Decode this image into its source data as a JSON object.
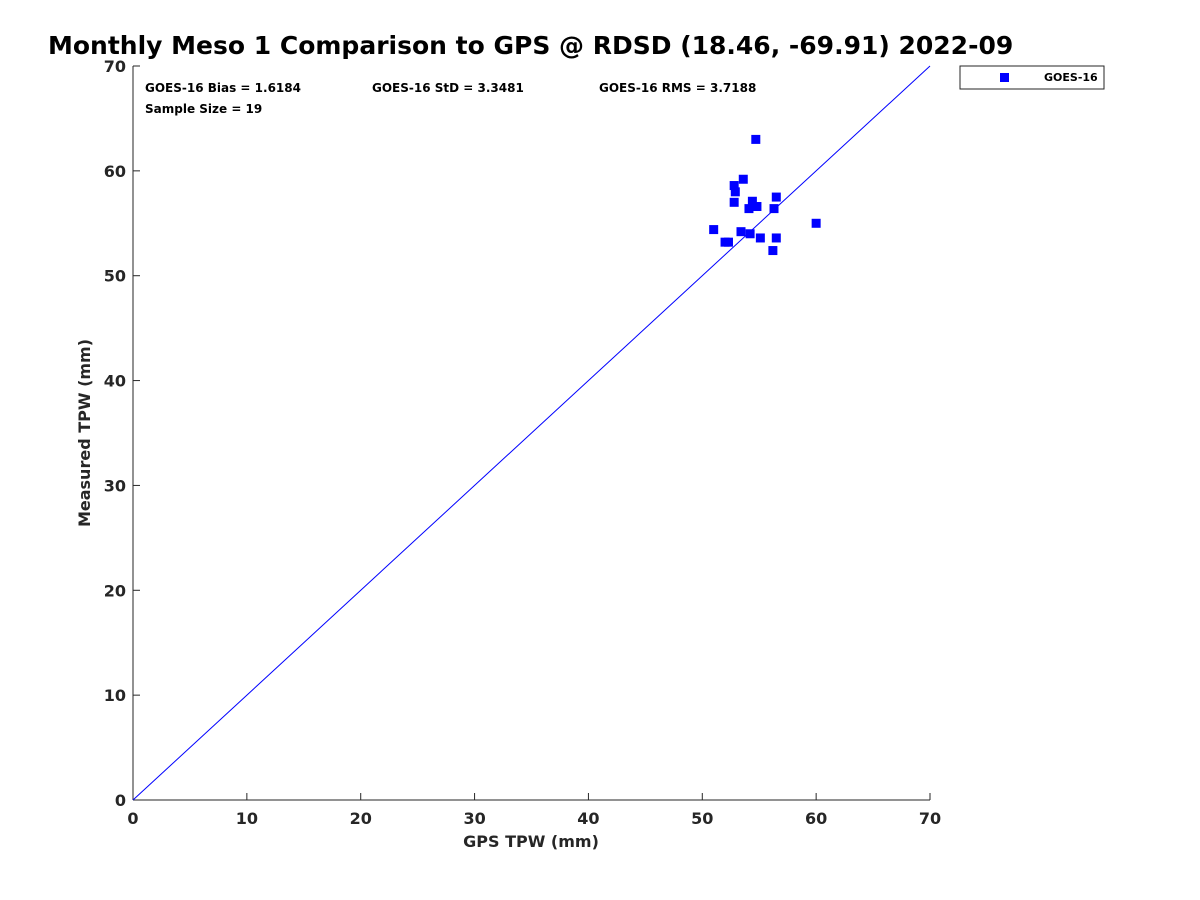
{
  "chart_data": {
    "type": "scatter",
    "title": "Monthly Meso 1 Comparison to GPS @ RDSD (18.46, -69.91) 2022-09",
    "xlabel": "GPS TPW (mm)",
    "ylabel": "Measured TPW (mm)",
    "xlim": [
      0,
      70
    ],
    "ylim": [
      0,
      70
    ],
    "xticks": [
      "0",
      "10",
      "20",
      "30",
      "40",
      "50",
      "60",
      "70"
    ],
    "yticks": [
      "0",
      "10",
      "20",
      "30",
      "40",
      "50",
      "60",
      "70"
    ],
    "grid": false,
    "legend_position": "outside-top-right",
    "reference_line": {
      "x": [
        0,
        70
      ],
      "y": [
        0,
        70
      ],
      "color": "#0000ff"
    },
    "series": [
      {
        "name": "GOES-16",
        "color": "#0000ff",
        "marker": "square",
        "points": [
          {
            "x": 54.7,
            "y": 63.0
          },
          {
            "x": 53.6,
            "y": 59.2
          },
          {
            "x": 52.8,
            "y": 58.6
          },
          {
            "x": 52.9,
            "y": 58.0
          },
          {
            "x": 56.5,
            "y": 57.5
          },
          {
            "x": 52.8,
            "y": 57.0
          },
          {
            "x": 54.4,
            "y": 57.1
          },
          {
            "x": 54.8,
            "y": 56.6
          },
          {
            "x": 54.1,
            "y": 56.4
          },
          {
            "x": 56.3,
            "y": 56.4
          },
          {
            "x": 60.0,
            "y": 55.0
          },
          {
            "x": 51.0,
            "y": 54.4
          },
          {
            "x": 53.4,
            "y": 54.2
          },
          {
            "x": 54.2,
            "y": 54.0
          },
          {
            "x": 55.1,
            "y": 53.6
          },
          {
            "x": 56.5,
            "y": 53.6
          },
          {
            "x": 52.0,
            "y": 53.2
          },
          {
            "x": 52.3,
            "y": 53.2
          },
          {
            "x": 56.2,
            "y": 52.4
          }
        ]
      }
    ],
    "stats": {
      "bias": "GOES-16 Bias = 1.6184",
      "std": "GOES-16 StD = 3.3481",
      "rms": "GOES-16 RMS = 3.7188",
      "sample_size": "Sample Size = 19"
    },
    "legend": {
      "label": "GOES-16"
    }
  }
}
